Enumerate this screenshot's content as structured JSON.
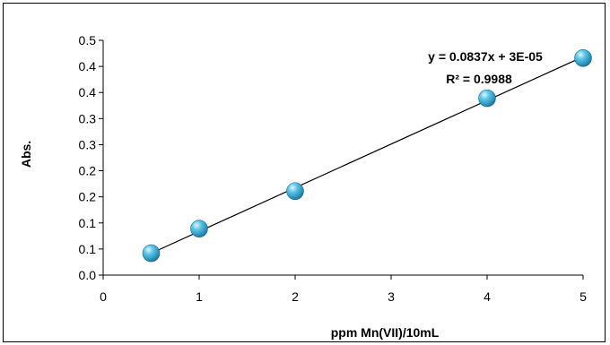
{
  "chart_data": {
    "type": "scatter",
    "title": "",
    "xlabel": "ppm Mn(VII)/10mL",
    "ylabel": "Abs.",
    "xlim": [
      0,
      5
    ],
    "ylim": [
      0,
      0.45
    ],
    "x_ticks": [
      "0",
      "1",
      "2",
      "3",
      "4",
      "5"
    ],
    "y_ticks": [
      "0.0",
      "0.1",
      "0.1",
      "0.2",
      "0.2",
      "0.3",
      "0.3",
      "0.4",
      "0.4",
      "0.5"
    ],
    "grid": false,
    "legend": "none",
    "series": [
      {
        "points": [
          {
            "x": 0.5,
            "y": 0.042
          },
          {
            "x": 1.0,
            "y": 0.089
          },
          {
            "x": 2.0,
            "y": 0.161
          },
          {
            "x": 4.0,
            "y": 0.339
          },
          {
            "x": 5.0,
            "y": 0.416
          }
        ],
        "marker_color": "#3BA8CC"
      }
    ],
    "trendline": {
      "type": "linear",
      "slope": 0.0837,
      "intercept": 3e-05,
      "equation_label": "y = 0.0837x + 3E-05",
      "r2_label": "R² = 0.9988",
      "color": "#000000"
    }
  }
}
